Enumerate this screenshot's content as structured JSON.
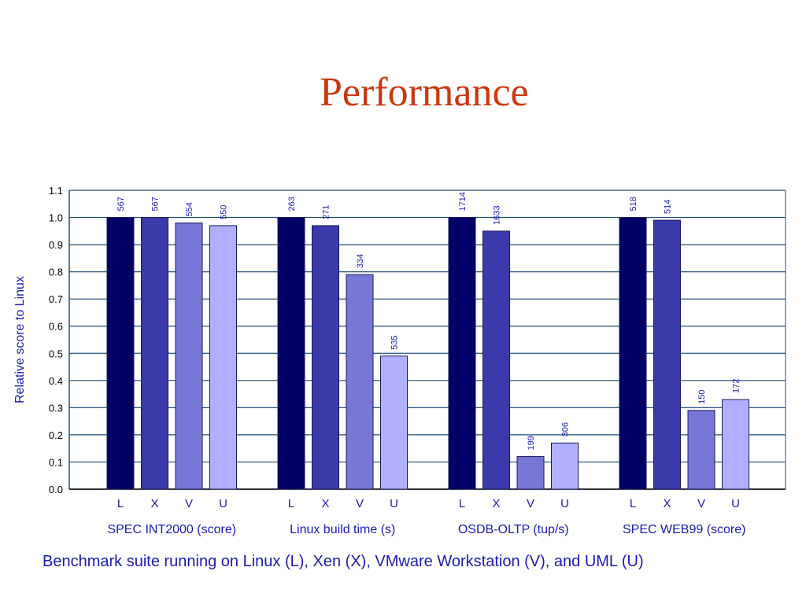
{
  "slide_title": "Performance",
  "caption": "Benchmark suite running on Linux (L), Xen (X), VMware Workstation (V), and UML (U)",
  "colors": {
    "title": "#c9380f",
    "text_blue": "#1a1ab4",
    "grid": "#1f4f7a",
    "bar_L": "#000066",
    "bar_X": "#3a3aaa",
    "bar_V": "#7777d8",
    "bar_U": "#b0b0ff"
  },
  "chart_data": {
    "type": "bar",
    "ylabel": "Relative score to Linux",
    "ylim": [
      0,
      1.1
    ],
    "yticks": [
      "0.0",
      "0.1",
      "0.2",
      "0.3",
      "0.4",
      "0.5",
      "0.6",
      "0.7",
      "0.8",
      "0.9",
      "1.0",
      "1.1"
    ],
    "grid": true,
    "groups": [
      {
        "name": "SPEC INT2000 (score)",
        "bars": [
          {
            "label": "L",
            "value": 1.0,
            "annotation": "567"
          },
          {
            "label": "X",
            "value": 1.0,
            "annotation": "567"
          },
          {
            "label": "V",
            "value": 0.98,
            "annotation": "554"
          },
          {
            "label": "U",
            "value": 0.97,
            "annotation": "550"
          }
        ]
      },
      {
        "name": "Linux build time (s)",
        "bars": [
          {
            "label": "L",
            "value": 1.0,
            "annotation": "263"
          },
          {
            "label": "X",
            "value": 0.97,
            "annotation": "271"
          },
          {
            "label": "V",
            "value": 0.79,
            "annotation": "334"
          },
          {
            "label": "U",
            "value": 0.49,
            "annotation": "535"
          }
        ]
      },
      {
        "name": "OSDB-OLTP (tup/s)",
        "bars": [
          {
            "label": "L",
            "value": 1.0,
            "annotation": "1714"
          },
          {
            "label": "X",
            "value": 0.95,
            "annotation": "1633"
          },
          {
            "label": "V",
            "value": 0.12,
            "annotation": "199"
          },
          {
            "label": "U",
            "value": 0.17,
            "annotation": "306"
          }
        ]
      },
      {
        "name": "SPEC WEB99 (score)",
        "bars": [
          {
            "label": "L",
            "value": 1.0,
            "annotation": "518"
          },
          {
            "label": "X",
            "value": 0.99,
            "annotation": "514"
          },
          {
            "label": "V",
            "value": 0.29,
            "annotation": "150"
          },
          {
            "label": "U",
            "value": 0.33,
            "annotation": "172"
          }
        ]
      }
    ]
  }
}
